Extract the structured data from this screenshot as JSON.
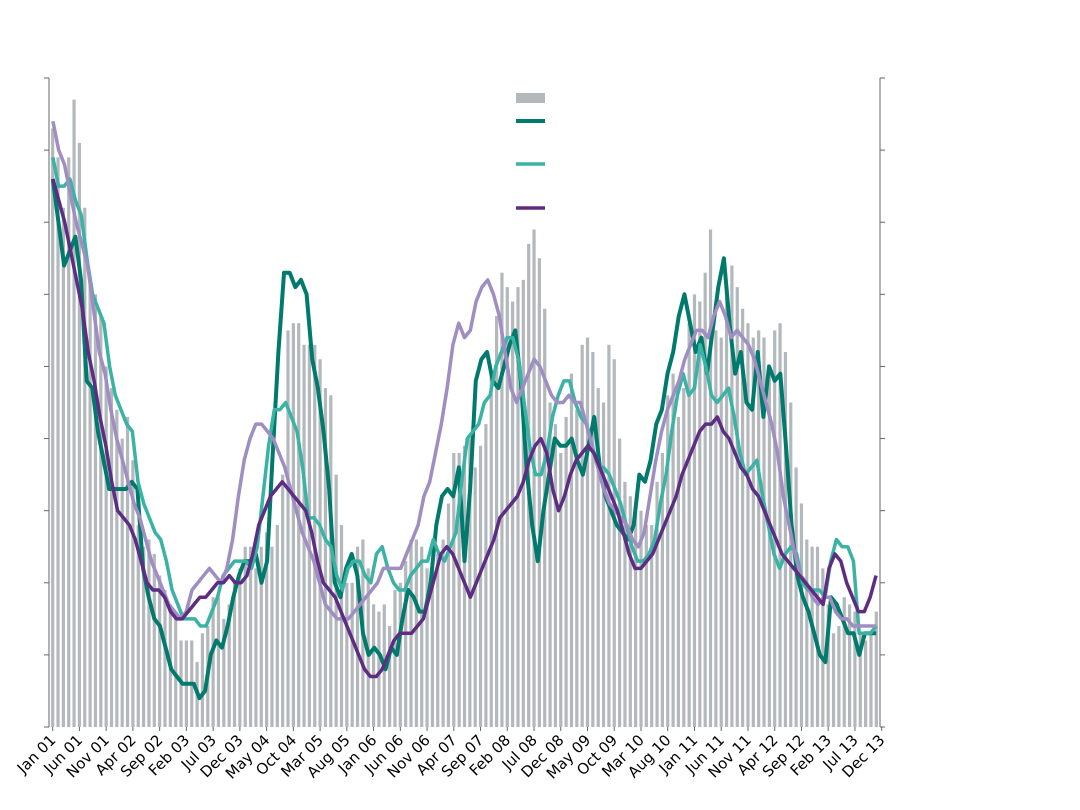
{
  "chart_data": {
    "type": "bar+line",
    "title": "",
    "xlabel": "",
    "ylabel": "",
    "grid": false,
    "legend_position": "top-center",
    "x_tick_labels": [
      "Jan 01",
      "Jun 01",
      "Nov 01",
      "Apr 02",
      "Sep 02",
      "Feb 03",
      "Jul 03",
      "Dec 03",
      "May 04",
      "Oct 04",
      "Mar 05",
      "Aug 05",
      "Jan 06",
      "Jun 06",
      "Nov 06",
      "Apr 07",
      "Sep 07",
      "Feb 08",
      "Jul 08",
      "Dec 08",
      "May 09",
      "Oct 09",
      "Mar 10",
      "Aug 10",
      "Jan 11",
      "Jun 11",
      "Nov 11",
      "Apr 12",
      "Sep 12",
      "Feb 13",
      "Jul 13",
      "Dec 13"
    ],
    "y_range": [
      0,
      9
    ],
    "y_ticks": [
      0,
      1,
      2,
      3,
      4,
      5,
      6,
      7,
      8,
      9
    ],
    "series": [
      {
        "kind": "bar",
        "color": "#b3b8bc",
        "values": [
          8.3,
          7.9,
          7.2,
          7.9,
          8.7,
          8.1,
          7.2,
          6.2,
          6.0,
          5.7,
          5.0,
          4.7,
          4.4,
          4.0,
          4.3,
          3.7,
          2.8,
          2.5,
          2.6,
          2.4,
          2.1,
          1.9,
          1.7,
          1.6,
          1.2,
          1.2,
          1.2,
          0.9,
          1.3,
          1.4,
          1.8,
          1.8,
          1.5,
          1.7,
          2.0,
          2.2,
          2.5,
          2.5,
          2.2,
          2.5,
          2.7,
          2.5,
          2.8,
          3.5,
          5.5,
          5.6,
          5.6,
          5.3,
          5.3,
          5.3,
          5.1,
          4.7,
          4.6,
          3.5,
          2.8,
          2.0,
          2.0,
          2.5,
          2.6,
          2.2,
          1.7,
          1.6,
          1.7,
          1.4,
          1.9,
          2.0,
          2.3,
          2.6,
          2.6,
          2.5,
          2.2,
          2.3,
          2.4,
          2.6,
          3.1,
          3.8,
          3.8,
          3.9,
          4.0,
          3.6,
          3.9,
          4.2,
          4.9,
          5.7,
          6.3,
          6.1,
          5.9,
          6.1,
          6.2,
          6.7,
          6.9,
          6.5,
          5.8,
          4.5,
          4.2,
          3.8,
          4.3,
          4.9,
          4.4,
          5.3,
          5.4,
          5.2,
          4.7,
          4.5,
          5.3,
          5.1,
          4.0,
          3.4,
          3.2,
          3.0,
          3.0,
          2.8,
          2.8,
          3.4,
          3.8,
          4.6,
          4.9,
          4.3,
          4.7,
          5.6,
          6.0,
          5.9,
          6.3,
          6.9,
          5.5,
          5.4,
          6.1,
          6.4,
          6.1,
          5.8,
          5.6,
          5.4,
          5.5,
          5.4,
          5.0,
          5.5,
          5.6,
          5.2,
          4.5,
          3.6,
          3.1,
          2.6,
          2.5,
          2.5,
          2.2,
          1.7,
          1.3,
          1.4,
          1.8,
          1.7,
          1.6,
          1.3,
          1.2,
          1.3,
          1.6
        ]
      },
      {
        "kind": "line",
        "color": "#007a6c",
        "width": 4,
        "values": [
          7.6,
          7.0,
          6.4,
          6.6,
          6.8,
          6.2,
          4.8,
          4.7,
          4.1,
          3.7,
          3.3,
          3.3,
          3.3,
          3.3,
          3.4,
          3.3,
          2.2,
          1.8,
          1.5,
          1.4,
          1.1,
          0.8,
          0.7,
          0.6,
          0.6,
          0.6,
          0.4,
          0.5,
          1.0,
          1.2,
          1.1,
          1.4,
          1.8,
          2.1,
          2.3,
          2.3,
          2.4,
          2.0,
          2.3,
          3.8,
          5.2,
          6.3,
          6.3,
          6.1,
          6.2,
          6.0,
          5.1,
          4.7,
          4.1,
          3.3,
          2.0,
          1.8,
          2.2,
          2.4,
          2.1,
          1.3,
          1.0,
          1.1,
          1.0,
          0.8,
          1.1,
          1.0,
          1.5,
          1.9,
          1.8,
          1.6,
          1.6,
          2.0,
          2.8,
          3.2,
          3.3,
          3.2,
          3.6,
          2.3,
          3.3,
          4.8,
          5.1,
          5.2,
          4.8,
          4.7,
          5.0,
          5.3,
          5.5,
          4.8,
          3.6,
          2.8,
          2.3,
          3.0,
          3.5,
          4.0,
          3.9,
          3.9,
          4.0,
          3.7,
          3.5,
          3.9,
          4.3,
          3.6,
          3.2,
          3.0,
          2.8,
          2.7,
          2.6,
          2.8,
          3.5,
          3.4,
          3.7,
          4.2,
          4.4,
          4.9,
          5.2,
          5.7,
          6.0,
          5.6,
          5.2,
          5.4,
          4.9,
          5.5,
          6.1,
          6.5,
          5.6,
          4.9,
          5.2,
          4.5,
          4.4,
          5.2,
          4.3,
          5.0,
          4.8,
          4.9,
          3.9,
          2.8,
          2.1,
          1.8,
          1.6,
          1.3,
          1.0,
          0.9,
          1.8,
          1.7,
          1.5,
          1.3,
          1.3,
          1.0,
          1.3,
          1.3,
          1.3
        ]
      },
      {
        "kind": "line",
        "color": "#3ab2a4",
        "width": 3.5,
        "values": [
          7.9,
          7.5,
          7.5,
          7.6,
          7.3,
          7.1,
          6.5,
          6.0,
          5.8,
          5.6,
          5.0,
          4.6,
          4.4,
          4.2,
          4.1,
          3.4,
          3.1,
          2.9,
          2.7,
          2.6,
          2.3,
          1.9,
          1.7,
          1.5,
          1.5,
          1.5,
          1.4,
          1.4,
          1.6,
          1.8,
          2.1,
          2.2,
          2.3,
          2.3,
          2.3,
          2.2,
          2.5,
          3.2,
          3.9,
          4.4,
          4.4,
          4.5,
          4.3,
          4.1,
          3.6,
          2.9,
          2.9,
          2.8,
          2.6,
          2.5,
          2.1,
          1.9,
          2.2,
          2.3,
          2.3,
          2.1,
          2.0,
          2.4,
          2.5,
          2.2,
          2.0,
          1.9,
          1.9,
          2.1,
          2.2,
          2.3,
          2.3,
          2.6,
          2.4,
          2.3,
          2.5,
          2.7,
          3.4,
          4.0,
          4.1,
          4.2,
          4.5,
          4.6,
          5.0,
          5.2,
          5.4,
          5.4,
          5.1,
          4.5,
          3.9,
          3.5,
          3.5,
          3.8,
          4.3,
          4.6,
          4.8,
          4.8,
          4.5,
          4.3,
          4.2,
          3.9,
          3.6,
          3.6,
          3.5,
          3.3,
          3.1,
          2.8,
          2.5,
          2.3,
          2.3,
          2.4,
          2.6,
          3.1,
          3.5,
          4.1,
          4.6,
          4.9,
          4.6,
          4.7,
          5.3,
          5.0,
          4.6,
          4.5,
          4.6,
          4.7,
          4.3,
          3.8,
          3.5,
          3.6,
          3.7,
          3.2,
          2.8,
          2.4,
          2.2,
          2.4,
          2.5,
          2.4,
          2.0,
          1.9,
          1.9,
          1.9,
          1.8,
          2.3,
          2.6,
          2.5,
          2.5,
          2.3,
          1.3,
          1.3,
          1.3,
          1.4
        ]
      },
      {
        "kind": "line",
        "color": "#a08dc2",
        "width": 3.5,
        "values": [
          8.4,
          8.0,
          7.8,
          7.4,
          7.0,
          6.7,
          6.4,
          5.8,
          5.2,
          4.9,
          4.4,
          4.0,
          3.7,
          3.4,
          3.1,
          2.9,
          2.6,
          2.3,
          2.1,
          1.9,
          1.7,
          1.6,
          1.5,
          1.6,
          1.9,
          2.0,
          2.1,
          2.2,
          2.1,
          2.0,
          2.2,
          2.6,
          3.2,
          3.7,
          4.0,
          4.2,
          4.2,
          4.1,
          4.0,
          3.8,
          3.6,
          3.3,
          3.0,
          2.7,
          2.5,
          2.3,
          2.0,
          1.7,
          1.6,
          1.5,
          1.5,
          1.5,
          1.6,
          1.7,
          1.8,
          1.9,
          2.0,
          2.2,
          2.2,
          2.2,
          2.2,
          2.4,
          2.6,
          2.8,
          3.2,
          3.4,
          3.8,
          4.2,
          4.7,
          5.3,
          5.6,
          5.4,
          5.5,
          5.9,
          6.1,
          6.2,
          6.0,
          5.7,
          5.2,
          4.7,
          4.5,
          4.7,
          4.9,
          5.1,
          5.0,
          4.8,
          4.6,
          4.5,
          4.5,
          4.6,
          4.5,
          4.5,
          4.2,
          3.9,
          3.6,
          3.3,
          3.1,
          3.0,
          2.9,
          2.8,
          2.6,
          2.5,
          2.7,
          3.2,
          3.7,
          4.1,
          4.4,
          4.6,
          4.8,
          5.1,
          5.3,
          5.5,
          5.5,
          5.4,
          5.7,
          5.9,
          5.7,
          5.4,
          5.5,
          5.4,
          5.3,
          5.1,
          4.8,
          4.5,
          4.2,
          3.8,
          3.2,
          2.8,
          2.4,
          2.1,
          2.0,
          1.8,
          1.7,
          1.8,
          1.8,
          1.6,
          1.5,
          1.5,
          1.4,
          1.4,
          1.4,
          1.4,
          1.4
        ]
      },
      {
        "kind": "line",
        "color": "#5c2d82",
        "width": 3.5,
        "values": [
          7.6,
          7.3,
          7.0,
          6.6,
          6.2,
          5.8,
          5.2,
          4.8,
          4.3,
          3.9,
          3.4,
          3.0,
          2.9,
          2.8,
          2.6,
          2.3,
          2.0,
          1.9,
          1.9,
          1.8,
          1.6,
          1.5,
          1.5,
          1.6,
          1.7,
          1.8,
          1.8,
          1.9,
          2.0,
          2.0,
          2.1,
          2.0,
          2.0,
          2.1,
          2.4,
          2.8,
          3.0,
          3.2,
          3.3,
          3.4,
          3.3,
          3.2,
          3.1,
          3.0,
          2.7,
          2.3,
          2.0,
          1.9,
          1.8,
          1.6,
          1.4,
          1.2,
          1.0,
          0.8,
          0.7,
          0.7,
          0.8,
          1.0,
          1.2,
          1.3,
          1.3,
          1.3,
          1.4,
          1.5,
          1.8,
          2.1,
          2.4,
          2.5,
          2.4,
          2.2,
          2.0,
          1.8,
          2.0,
          2.2,
          2.4,
          2.6,
          2.9,
          3.0,
          3.1,
          3.2,
          3.4,
          3.7,
          3.9,
          4.0,
          3.8,
          3.3,
          3.0,
          3.2,
          3.5,
          3.7,
          3.8,
          3.9,
          3.8,
          3.6,
          3.4,
          3.2,
          3.0,
          2.7,
          2.4,
          2.2,
          2.2,
          2.3,
          2.4,
          2.6,
          2.8,
          3.0,
          3.2,
          3.5,
          3.7,
          3.9,
          4.1,
          4.2,
          4.2,
          4.3,
          4.1,
          4.0,
          3.8,
          3.6,
          3.5,
          3.3,
          3.2,
          3.0,
          2.8,
          2.6,
          2.4,
          2.3,
          2.2,
          2.1,
          2.0,
          1.9,
          1.8,
          1.7,
          2.2,
          2.4,
          2.3,
          2.0,
          1.8,
          1.6,
          1.6,
          1.8,
          2.1
        ]
      }
    ]
  }
}
